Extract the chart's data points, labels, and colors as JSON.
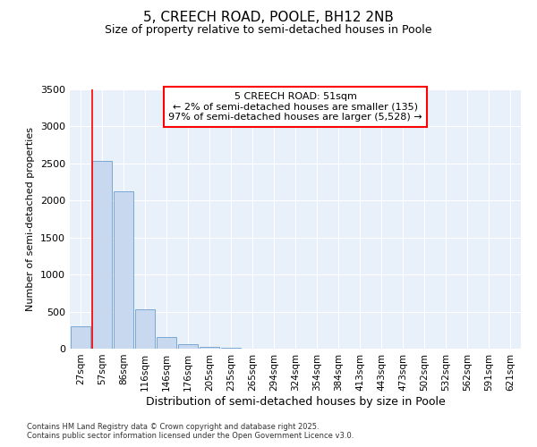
{
  "title": "5, CREECH ROAD, POOLE, BH12 2NB",
  "subtitle": "Size of property relative to semi-detached houses in Poole",
  "xlabel": "Distribution of semi-detached houses by size in Poole",
  "ylabel": "Number of semi-detached properties",
  "categories": [
    "27sqm",
    "57sqm",
    "86sqm",
    "116sqm",
    "146sqm",
    "176sqm",
    "205sqm",
    "235sqm",
    "265sqm",
    "294sqm",
    "324sqm",
    "354sqm",
    "384sqm",
    "413sqm",
    "443sqm",
    "473sqm",
    "502sqm",
    "532sqm",
    "562sqm",
    "591sqm",
    "621sqm"
  ],
  "values": [
    305,
    2540,
    2130,
    530,
    155,
    65,
    30,
    8,
    2,
    0,
    0,
    0,
    0,
    0,
    0,
    0,
    0,
    0,
    0,
    0,
    0
  ],
  "bar_color": "#c8d9ef",
  "bar_edge_color": "#7aa8d4",
  "red_line_x": 0.55,
  "annotation_title": "5 CREECH ROAD: 51sqm",
  "annotation_line1": "← 2% of semi-detached houses are smaller (135)",
  "annotation_line2": "97% of semi-detached houses are larger (5,528) →",
  "ylim": [
    0,
    3500
  ],
  "yticks": [
    0,
    500,
    1000,
    1500,
    2000,
    2500,
    3000,
    3500
  ],
  "background_color": "#ffffff",
  "plot_bg_color": "#e8f0fa",
  "grid_color": "#ffffff",
  "footer_line1": "Contains HM Land Registry data © Crown copyright and database right 2025.",
  "footer_line2": "Contains public sector information licensed under the Open Government Licence v3.0."
}
